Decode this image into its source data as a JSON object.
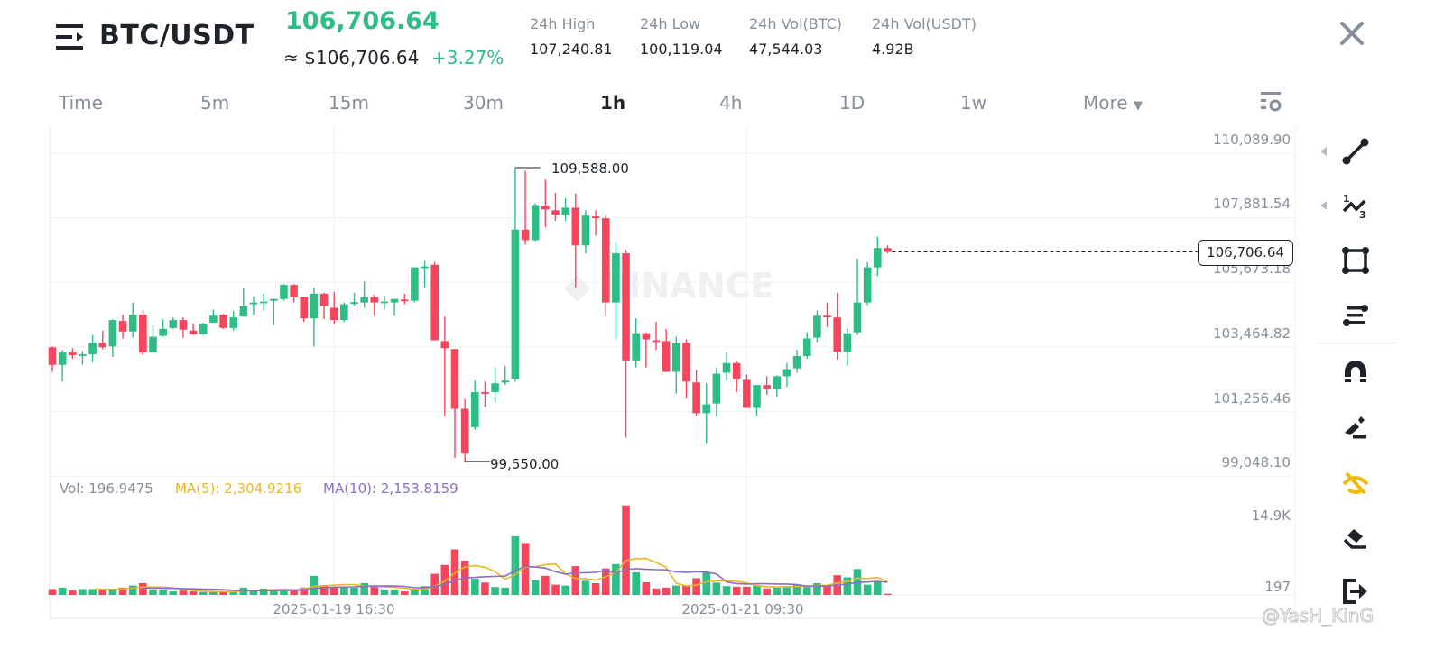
{
  "header": {
    "pair": "BTC/USDT",
    "last_price": "106,706.64",
    "approx_usd": "≈ $106,706.64",
    "change_pct": "+3.27%",
    "stats": [
      {
        "label": "24h High",
        "value": "107,240.81"
      },
      {
        "label": "24h Low",
        "value": "100,119.04"
      },
      {
        "label": "24h Vol(BTC)",
        "value": "47,544.03"
      },
      {
        "label": "24h Vol(USDT)",
        "value": "4.92B"
      }
    ]
  },
  "timeframes": {
    "items": [
      "Time",
      "5m",
      "15m",
      "30m",
      "1h",
      "4h",
      "1D",
      "1w",
      "More"
    ],
    "active": "1h"
  },
  "colors": {
    "up": "#2ebd85",
    "down": "#f6465d",
    "ma5": "#e9b728",
    "ma10": "#8b6fc0",
    "grid": "#eff0f2",
    "active_tool": "#f0b90b"
  },
  "toolbar": [
    "trend-line-icon",
    "fibonacci-icon",
    "rectangle-icon",
    "parallel-lines-icon",
    "magnet-icon",
    "pencil-icon",
    "hide-drawings-icon",
    "eraser-icon",
    "exit-icon"
  ],
  "volume_legend": {
    "vol": "Vol: 196.9475",
    "ma5": "MA(5): 2,304.9216",
    "ma10": "MA(10): 2,153.8159"
  },
  "watermark": "@YasH_KinG",
  "logo_watermark": "BINANCE",
  "chart_data": {
    "type": "candlestick",
    "interval": "1h",
    "price_axis_labels": [
      "110,089.90",
      "107,881.54",
      "105,673.18",
      "103,464.82",
      "101,256.46",
      "99,048.10"
    ],
    "price_axis_values": [
      110089.9,
      107881.54,
      105673.18,
      103464.82,
      101256.46,
      99048.1
    ],
    "current_price": "106,706.64",
    "high_marker": "109,588.00",
    "low_marker": "99,550.00",
    "volume_axis_labels": [
      "14.9K",
      "197"
    ],
    "volume_max": 14900,
    "x_labels": [
      {
        "index": 28,
        "label": "2025-01-19 16:30"
      },
      {
        "index": 69,
        "label": "2025-01-21 09:30"
      }
    ],
    "ohlc": [
      [
        103450,
        103480,
        102610,
        102850
      ],
      [
        102850,
        103360,
        102280,
        103270
      ],
      [
        103270,
        103420,
        103060,
        103180
      ],
      [
        103190,
        103330,
        102850,
        103210
      ],
      [
        103210,
        103870,
        102940,
        103600
      ],
      [
        103600,
        104020,
        103390,
        103450
      ],
      [
        103480,
        104410,
        103120,
        104380
      ],
      [
        104350,
        104560,
        103750,
        103990
      ],
      [
        103990,
        104980,
        103780,
        104560
      ],
      [
        104560,
        104710,
        103180,
        103270
      ],
      [
        103270,
        104200,
        103270,
        103810
      ],
      [
        103840,
        104410,
        103810,
        104080
      ],
      [
        104110,
        104470,
        104080,
        104380
      ],
      [
        104380,
        104470,
        103780,
        104050
      ],
      [
        104020,
        104260,
        103870,
        103900
      ],
      [
        103900,
        104290,
        103870,
        104260
      ],
      [
        104290,
        104740,
        104290,
        104530
      ],
      [
        104560,
        104590,
        104080,
        104110
      ],
      [
        104110,
        104680,
        104020,
        104470
      ],
      [
        104500,
        105460,
        104500,
        104860
      ],
      [
        104920,
        105190,
        104560,
        104980
      ],
      [
        104990,
        105280,
        104710,
        105010
      ],
      [
        105040,
        105110,
        104200,
        105100
      ],
      [
        105100,
        105610,
        105040,
        105580
      ],
      [
        105580,
        105610,
        104980,
        105160
      ],
      [
        105160,
        105160,
        104320,
        104440
      ],
      [
        104440,
        105490,
        103480,
        105280
      ],
      [
        105280,
        105310,
        104410,
        104860
      ],
      [
        104800,
        105340,
        104230,
        104380
      ],
      [
        104380,
        104980,
        104320,
        104920
      ],
      [
        104960,
        105310,
        104860,
        104990
      ],
      [
        104980,
        105700,
        104800,
        105160
      ],
      [
        105160,
        105250,
        104530,
        104980
      ],
      [
        104990,
        105220,
        104740,
        105010
      ],
      [
        104980,
        105100,
        104530,
        105100
      ],
      [
        105080,
        105280,
        104920,
        105060
      ],
      [
        105040,
        106180,
        104980,
        106180
      ],
      [
        106190,
        106420,
        105490,
        106210
      ],
      [
        106270,
        106360,
        103690,
        103690
      ],
      [
        103660,
        104500,
        101110,
        103420
      ],
      [
        103390,
        103390,
        99670,
        101350
      ],
      [
        101350,
        101680,
        99550,
        99820
      ],
      [
        100720,
        102310,
        100630,
        101920
      ],
      [
        101920,
        102280,
        101410,
        101860
      ],
      [
        101920,
        102760,
        101560,
        102220
      ],
      [
        102250,
        102820,
        102160,
        102310
      ],
      [
        102370,
        109588,
        102280,
        107470
      ],
      [
        107470,
        109480,
        106960,
        107110
      ],
      [
        107110,
        108370,
        107080,
        108310
      ],
      [
        108280,
        109180,
        107560,
        108160
      ],
      [
        108130,
        108730,
        107770,
        107980
      ],
      [
        107980,
        108550,
        107770,
        108220
      ],
      [
        108220,
        108700,
        105490,
        106930
      ],
      [
        106930,
        108130,
        106660,
        107950
      ],
      [
        107920,
        108130,
        107260,
        107860
      ],
      [
        107860,
        107980,
        104500,
        104980
      ],
      [
        104980,
        107050,
        103720,
        106660
      ],
      [
        106660,
        106780,
        100360,
        103000
      ],
      [
        103000,
        104440,
        102760,
        103930
      ],
      [
        103930,
        103960,
        102760,
        103720
      ],
      [
        103690,
        104320,
        103360,
        103660
      ],
      [
        103660,
        104080,
        102610,
        102610
      ],
      [
        102610,
        103810,
        101860,
        103600
      ],
      [
        103600,
        103720,
        101710,
        102280
      ],
      [
        102250,
        102670,
        101110,
        101200
      ],
      [
        101200,
        102220,
        100150,
        101500
      ],
      [
        101530,
        102760,
        101080,
        102550
      ],
      [
        102580,
        103270,
        102310,
        102910
      ],
      [
        102910,
        102970,
        101920,
        102370
      ],
      [
        102340,
        102520,
        101380,
        101380
      ],
      [
        101380,
        102160,
        101110,
        102160
      ],
      [
        102160,
        102460,
        101830,
        102010
      ],
      [
        102010,
        102490,
        101770,
        102460
      ],
      [
        102460,
        102910,
        102100,
        102700
      ],
      [
        102730,
        103360,
        102580,
        103150
      ],
      [
        103150,
        103960,
        103060,
        103750
      ],
      [
        103780,
        104710,
        103630,
        104530
      ],
      [
        104530,
        104980,
        104140,
        104470
      ],
      [
        104470,
        105310,
        103030,
        103300
      ],
      [
        103300,
        104110,
        102820,
        103930
      ],
      [
        103960,
        106480,
        103870,
        104980
      ],
      [
        104980,
        106360,
        104890,
        106180
      ],
      [
        106180,
        107230,
        105880,
        106840
      ],
      [
        106840,
        106930,
        106660,
        106706.64
      ]
    ],
    "volume": [
      980,
      1225,
      735,
      980,
      980,
      980,
      882,
      1225,
      1568,
      1960,
      882,
      882,
      588,
      735,
      588,
      490,
      490,
      588,
      490,
      1225,
      735,
      1078,
      882,
      882,
      882,
      1225,
      3185,
      1470,
      1372,
      1372,
      1225,
      1960,
      1372,
      882,
      882,
      588,
      882,
      1470,
      3528,
      4998,
      7595,
      5733,
      2695,
      2058,
      1323,
      1225,
      9800,
      8673,
      2450,
      3185,
      1715,
      1568,
      4802,
      2352,
      1960,
      4410,
      5145,
      14945,
      3773,
      2107,
      1078,
      1225,
      1568,
      1568,
      2793,
      3773,
      2058,
      1470,
      1372,
      1372,
      1568,
      1078,
      1225,
      1470,
      1715,
      1470,
      1960,
      1470,
      3283,
      2940,
      4312,
      1715,
      2205,
      197
    ]
  }
}
